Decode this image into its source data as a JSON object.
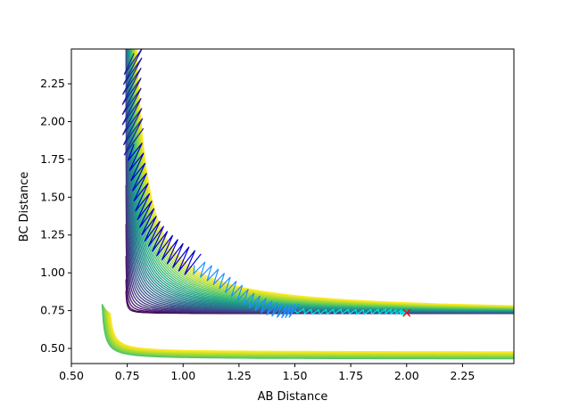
{
  "chart_data": {
    "type": "contour",
    "title": "",
    "xlabel": "AB Distance",
    "ylabel": "BC Distance",
    "xlim": [
      0.5,
      2.48
    ],
    "ylim": [
      0.4,
      2.48
    ],
    "xticks": [
      0.5,
      0.75,
      1.0,
      1.25,
      1.5,
      1.75,
      2.0,
      2.25
    ],
    "xtick_labels": [
      "0.50",
      "0.75",
      "1.00",
      "1.25",
      "1.50",
      "1.75",
      "2.00",
      "2.25"
    ],
    "yticks": [
      0.5,
      0.75,
      1.0,
      1.25,
      1.5,
      1.75,
      2.0,
      2.25
    ],
    "ytick_labels": [
      "0.50",
      "0.75",
      "1.00",
      "1.25",
      "1.50",
      "1.75",
      "2.00",
      "2.25"
    ],
    "grid": false,
    "colormap": "viridis",
    "contour": {
      "corner_x": 0.74,
      "corner_y": 0.73,
      "level_count": 36,
      "colors": [
        "#440154",
        "#482878",
        "#3e4989",
        "#31688e",
        "#26828e",
        "#1f9e89",
        "#35b779",
        "#6ece58",
        "#b5de2b",
        "#fde725"
      ]
    },
    "trajectory": {
      "colors": [
        "#00e5ee",
        "#1e90ff",
        "#0000cd",
        "#2020a0"
      ],
      "points": [
        [
          2.0,
          0.735
        ],
        [
          1.97,
          0.74
        ],
        [
          1.9,
          0.745
        ],
        [
          1.8,
          0.74
        ],
        [
          1.7,
          0.745
        ],
        [
          1.6,
          0.74
        ],
        [
          1.5,
          0.75
        ],
        [
          1.45,
          0.745
        ],
        [
          1.38,
          0.77
        ],
        [
          1.3,
          0.82
        ],
        [
          1.22,
          0.9
        ],
        [
          1.14,
          0.98
        ],
        [
          1.05,
          1.05
        ],
        [
          0.97,
          1.12
        ],
        [
          0.9,
          1.2
        ],
        [
          0.85,
          1.3
        ],
        [
          0.82,
          1.45
        ],
        [
          0.8,
          1.65
        ],
        [
          0.78,
          1.85
        ],
        [
          0.77,
          2.05
        ],
        [
          0.77,
          2.25
        ],
        [
          0.78,
          2.45
        ]
      ]
    },
    "marker": {
      "x": 2.0,
      "y": 0.735,
      "symbol": "x",
      "color": "#ff0000"
    }
  }
}
